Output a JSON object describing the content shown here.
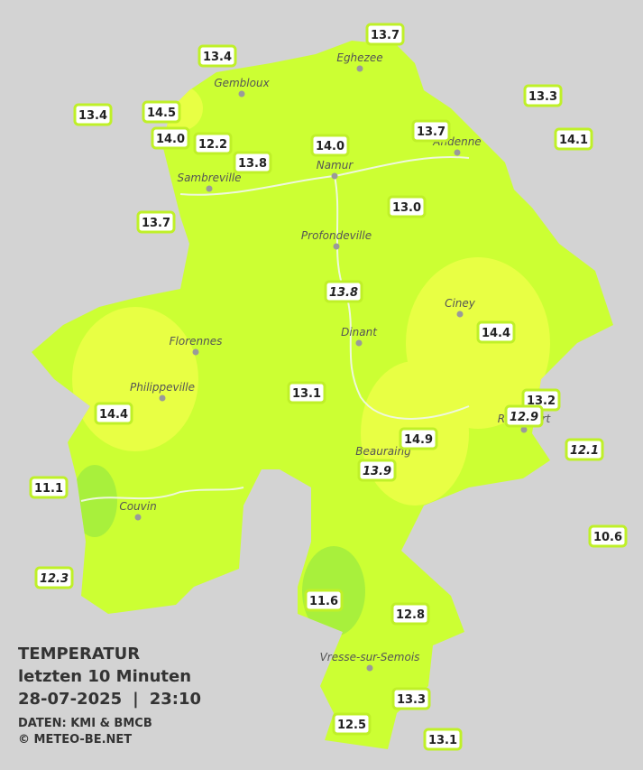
{
  "legend": {
    "title": "TEMPERATUR",
    "period": "letzten 10 Minuten",
    "date": "28-07-2025",
    "separator": "|",
    "time": "23:10",
    "source": "DATEN: KMI & BMCB",
    "copyright": "© METEO-BE.NET"
  },
  "cities": [
    {
      "name": "Eghezee"
    },
    {
      "name": "Gembloux"
    },
    {
      "name": "Andenne"
    },
    {
      "name": "Namur"
    },
    {
      "name": "Sambreville"
    },
    {
      "name": "Profondeville"
    },
    {
      "name": "Ciney"
    },
    {
      "name": "Dinant"
    },
    {
      "name": "Florennes"
    },
    {
      "name": "Philippeville"
    },
    {
      "name": "Rochefort"
    },
    {
      "name": "Beauraing"
    },
    {
      "name": "Couvin"
    },
    {
      "name": "Vresse-sur-Semois"
    }
  ],
  "stations": [
    {
      "label": "13.7",
      "italic": false
    },
    {
      "label": "13.4",
      "italic": false
    },
    {
      "label": "13.3",
      "italic": false
    },
    {
      "label": "13.4",
      "italic": false
    },
    {
      "label": "14.5",
      "italic": false
    },
    {
      "label": "14.0",
      "italic": false
    },
    {
      "label": "12.2",
      "italic": false
    },
    {
      "label": "13.8",
      "italic": false
    },
    {
      "label": "14.0",
      "italic": false
    },
    {
      "label": "13.7",
      "italic": false
    },
    {
      "label": "14.1",
      "italic": false
    },
    {
      "label": "13.0",
      "italic": false
    },
    {
      "label": "13.7",
      "italic": false
    },
    {
      "label": "13.8",
      "italic": true
    },
    {
      "label": "14.4",
      "italic": false
    },
    {
      "label": "13.1",
      "italic": false
    },
    {
      "label": "14.4",
      "italic": false
    },
    {
      "label": "13.2",
      "italic": false
    },
    {
      "label": "12.9",
      "italic": true
    },
    {
      "label": "14.9",
      "italic": false
    },
    {
      "label": "12.1",
      "italic": true
    },
    {
      "label": "13.9",
      "italic": true
    },
    {
      "label": "11.1",
      "italic": false
    },
    {
      "label": "10.6",
      "italic": false
    },
    {
      "label": "12.3",
      "italic": true
    },
    {
      "label": "11.6",
      "italic": false
    },
    {
      "label": "12.8",
      "italic": false
    },
    {
      "label": "13.3",
      "italic": false
    },
    {
      "label": "12.5",
      "italic": false
    },
    {
      "label": "13.1",
      "italic": false
    }
  ]
}
